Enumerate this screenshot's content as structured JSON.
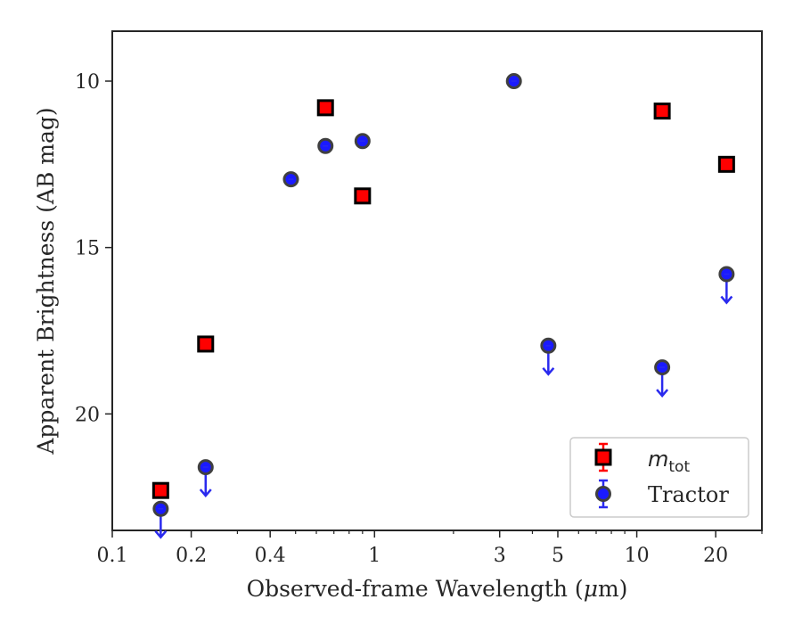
{
  "chart_data": {
    "type": "scatter",
    "xlabel": "Observed-frame Wavelength (μm)",
    "xlabel_parts": {
      "before": "Observed-frame Wavelength (",
      "mu": "μ",
      "after": "m)"
    },
    "ylabel": "Apparent Brightness (AB mag)",
    "x_scale": "log",
    "xlim": [
      0.1,
      30
    ],
    "ylim": [
      23.5,
      8.5
    ],
    "y_inverted": true,
    "x_ticks": [
      {
        "value": 0.1,
        "label": "0.1"
      },
      {
        "value": 0.2,
        "label": "0.2"
      },
      {
        "value": 0.4,
        "label": "0.4"
      },
      {
        "value": 1,
        "label": "1"
      },
      {
        "value": 3,
        "label": "3"
      },
      {
        "value": 5,
        "label": "5"
      },
      {
        "value": 10,
        "label": "10"
      },
      {
        "value": 20,
        "label": "20"
      }
    ],
    "y_ticks": [
      {
        "value": 10,
        "label": "10"
      },
      {
        "value": 15,
        "label": "15"
      },
      {
        "value": 20,
        "label": "20"
      }
    ],
    "legend_position": "lower-right",
    "series": [
      {
        "name": "m_tot",
        "legend_label": {
          "main": "m",
          "sub": "tot"
        },
        "marker": "square",
        "face_color": "#ff0000",
        "edge_color": "#000000",
        "errorbar_color": "#ff0000",
        "points": [
          {
            "x": 0.153,
            "y": 22.3
          },
          {
            "x": 0.227,
            "y": 17.9
          },
          {
            "x": 0.65,
            "y": 10.8
          },
          {
            "x": 0.9,
            "y": 13.45
          },
          {
            "x": 12.5,
            "y": 10.9
          },
          {
            "x": 22,
            "y": 12.5
          }
        ]
      },
      {
        "name": "Tractor",
        "legend_label": {
          "main": "Tractor"
        },
        "marker": "circle",
        "face_color": "#1a1aff",
        "edge_color": "#404040",
        "errorbar_color": "#2a2aee",
        "points": [
          {
            "x": 0.153,
            "y": 22.85,
            "upper_limit": true
          },
          {
            "x": 0.227,
            "y": 21.6,
            "upper_limit": true
          },
          {
            "x": 0.48,
            "y": 12.95
          },
          {
            "x": 0.65,
            "y": 11.95
          },
          {
            "x": 0.9,
            "y": 11.8
          },
          {
            "x": 3.4,
            "y": 10.0
          },
          {
            "x": 4.6,
            "y": 17.95,
            "upper_limit": true
          },
          {
            "x": 12.5,
            "y": 18.6,
            "upper_limit": true
          },
          {
            "x": 22,
            "y": 15.8,
            "upper_limit": true
          }
        ]
      }
    ]
  }
}
